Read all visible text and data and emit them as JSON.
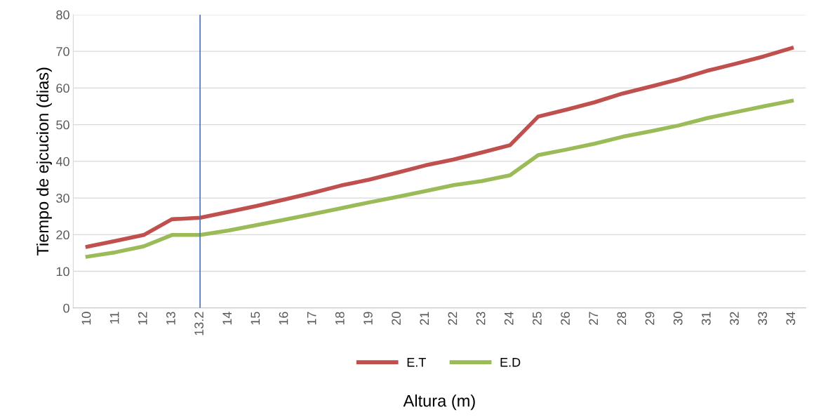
{
  "chart_data": {
    "type": "line",
    "xlabel": "Altura (m)",
    "ylabel": "Tiempo de ejcucion (dias)",
    "categories": [
      "10",
      "11",
      "12",
      "13",
      "13.2",
      "14",
      "15",
      "16",
      "17",
      "18",
      "19",
      "20",
      "21",
      "22",
      "23",
      "24",
      "25",
      "26",
      "27",
      "28",
      "29",
      "30",
      "31",
      "32",
      "33",
      "34"
    ],
    "series": [
      {
        "name": "E.T",
        "color": "#c0504d",
        "values": [
          16.7,
          18.3,
          19.9,
          24.2,
          24.6,
          26.2,
          27.8,
          29.6,
          31.4,
          33.4,
          35.0,
          36.9,
          38.9,
          40.5,
          42.4,
          44.4,
          52.2,
          54.1,
          56.1,
          58.5,
          60.4,
          62.4,
          64.7,
          66.6,
          68.6,
          70.9
        ]
      },
      {
        "name": "E.D",
        "color": "#9bbb59",
        "values": [
          14.0,
          15.2,
          16.8,
          19.9,
          19.9,
          21.1,
          22.6,
          24.1,
          25.6,
          27.2,
          28.8,
          30.3,
          31.9,
          33.5,
          34.6,
          36.2,
          41.7,
          43.2,
          44.8,
          46.7,
          48.2,
          49.8,
          51.8,
          53.4,
          55.0,
          56.5
        ]
      }
    ],
    "ylim": [
      0,
      80
    ],
    "yticks": [
      0,
      10,
      20,
      30,
      40,
      50,
      60,
      70,
      80
    ],
    "grid": "y",
    "legend": "bottom",
    "marker": "none",
    "line_style": "solid",
    "ref_lines": [
      {
        "axis": "x",
        "value": "13.2",
        "color": "#4472c4"
      }
    ]
  }
}
